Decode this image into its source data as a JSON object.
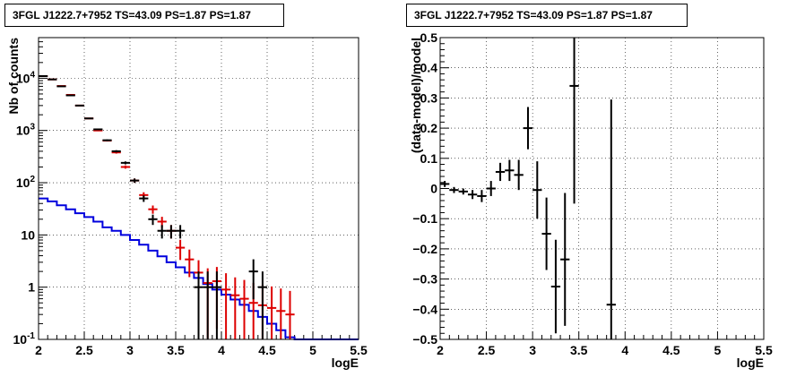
{
  "chart_data": [
    {
      "type": "step-histogram",
      "title": "3FGL J1222.7+7952 TS=43.09 PS=1.87 PS=1.87",
      "xlabel": "logE",
      "ylabel": "Nb of counts",
      "xlim": [
        2,
        5.5
      ],
      "ylim": [
        0.1,
        60000
      ],
      "yscale": "log",
      "grid": true,
      "x_ticks": [
        "2",
        "2.5",
        "3",
        "3.5",
        "4",
        "4.5",
        "5",
        "5.5"
      ],
      "y_ticks": [
        "10^-1",
        "1",
        "10",
        "10^2",
        "10^3",
        "10^4"
      ],
      "bins_x": [
        2.05,
        2.15,
        2.25,
        2.35,
        2.45,
        2.55,
        2.65,
        2.75,
        2.85,
        2.95,
        3.05,
        3.15,
        3.25,
        3.35,
        3.45,
        3.55,
        3.65,
        3.75,
        3.85,
        3.95,
        4.05,
        4.15,
        4.25,
        4.35,
        4.45,
        4.55,
        4.65,
        4.75
      ],
      "series": [
        {
          "color": "#000000",
          "style": "data points with error bars",
          "values": [
            11000,
            9500,
            7000,
            4700,
            3000,
            1700,
            1050,
            650,
            400,
            240,
            110,
            50,
            20,
            12,
            12,
            12,
            0,
            1,
            1,
            1,
            0,
            0,
            0,
            2,
            1,
            0,
            0,
            0
          ]
        },
        {
          "color": "#dd0000",
          "style": "model points with error bars",
          "values": [
            11000,
            9500,
            7100,
            4800,
            3000,
            1700,
            1000,
            640,
            380,
            200,
            110,
            58,
            31,
            18,
            12,
            5.7,
            3.4,
            1.9,
            1.2,
            1.3,
            0.9,
            0.7,
            0.6,
            0.5,
            0.45,
            0.4,
            0.35,
            0.3
          ]
        },
        {
          "color": "#0000dd",
          "style": "step line",
          "values": [
            50,
            44,
            37,
            31,
            26,
            22,
            18,
            14,
            12,
            10,
            8,
            6.5,
            5,
            3.9,
            3,
            2.4,
            1.9,
            1.5,
            1.15,
            0.9,
            0.72,
            0.58,
            0.46,
            0.35,
            0.27,
            0.2,
            0.15,
            0.11,
            0.1,
            0.1,
            0.1,
            0.1,
            0.1,
            0.1,
            0.1
          ]
        }
      ]
    },
    {
      "type": "scatter",
      "title": "3FGL J1222.7+7952 TS=43.09 PS=1.87 PS=1.87",
      "xlabel": "logE",
      "ylabel": "(data-model)/model",
      "xlim": [
        2,
        5.5
      ],
      "ylim": [
        -0.5,
        0.5
      ],
      "grid": true,
      "x_ticks": [
        "2",
        "2.5",
        "3",
        "3.5",
        "4",
        "4.5",
        "5",
        "5.5"
      ],
      "y_ticks": [
        "-0.5",
        "-0.4",
        "-0.3",
        "-0.2",
        "-0.1",
        "0",
        "0.1",
        "0.2",
        "0.3",
        "0.4",
        "0.5"
      ],
      "points": [
        {
          "x": 2.05,
          "y": 0.015,
          "err": 0.01
        },
        {
          "x": 2.15,
          "y": -0.005,
          "err": 0.01
        },
        {
          "x": 2.25,
          "y": -0.01,
          "err": 0.01
        },
        {
          "x": 2.35,
          "y": -0.02,
          "err": 0.015
        },
        {
          "x": 2.45,
          "y": -0.025,
          "err": 0.02
        },
        {
          "x": 2.55,
          "y": 0.0,
          "err": 0.025
        },
        {
          "x": 2.65,
          "y": 0.055,
          "err": 0.03
        },
        {
          "x": 2.75,
          "y": 0.06,
          "err": 0.035
        },
        {
          "x": 2.85,
          "y": 0.045,
          "err": 0.05
        },
        {
          "x": 2.95,
          "y": 0.2,
          "err": 0.07
        },
        {
          "x": 3.05,
          "y": -0.005,
          "err": 0.095
        },
        {
          "x": 3.15,
          "y": -0.15,
          "err": 0.12
        },
        {
          "x": 3.25,
          "y": -0.325,
          "err": 0.155
        },
        {
          "x": 3.35,
          "y": -0.235,
          "err": 0.22
        },
        {
          "x": 3.45,
          "y": 0.34,
          "err": 0.39
        },
        {
          "x": 3.85,
          "y": -0.385,
          "err": 0.68
        }
      ]
    }
  ]
}
